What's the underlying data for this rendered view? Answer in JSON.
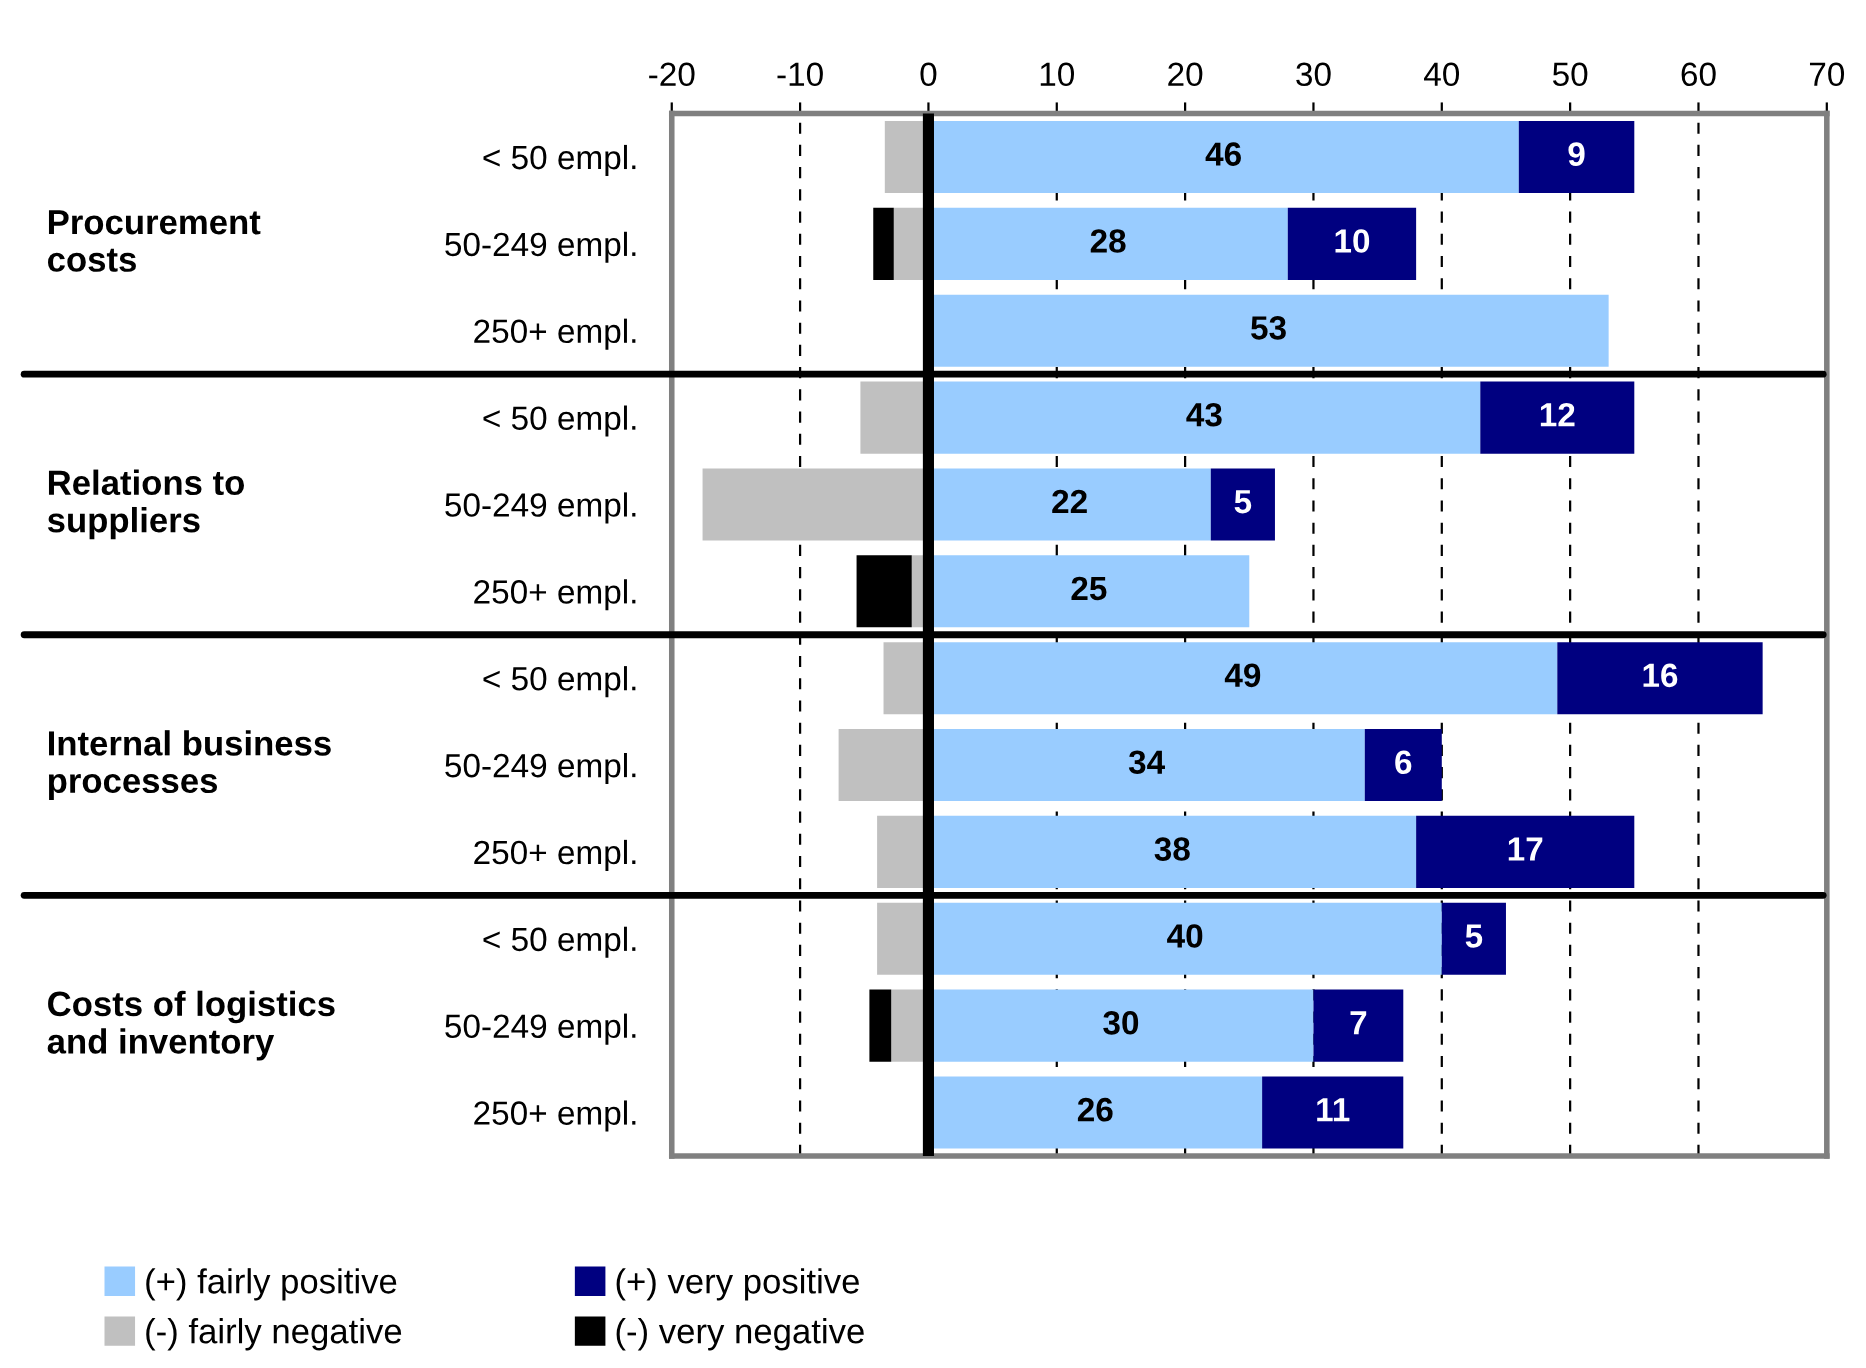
{
  "chart_data": {
    "type": "bar",
    "orientation": "horizontal",
    "stacked": true,
    "categories": [
      "< 50 empl.",
      "50-249 empl.",
      "250+ empl.",
      "< 50 empl.",
      "50-249 empl.",
      "250+ empl.",
      "< 50 empl.",
      "50-249 empl.",
      "250+ empl.",
      "< 50 empl.",
      "50-249 empl.",
      "250+ empl."
    ],
    "series": [
      {
        "name": "(+) fairly positive",
        "color": "#99ccff",
        "values": [
          46,
          28,
          53,
          43,
          22,
          25,
          49,
          34,
          38,
          40,
          30,
          26
        ],
        "value_labels": [
          "46",
          "28",
          "53",
          "43",
          "22",
          "25",
          "49",
          "34",
          "38",
          "40",
          "30",
          "26"
        ]
      },
      {
        "name": "(+) very positive",
        "color": "#000080",
        "values": [
          9,
          10,
          0,
          12,
          5,
          0,
          16,
          6,
          17,
          5,
          7,
          11
        ],
        "value_labels": [
          "9",
          "10",
          null,
          "12",
          "5",
          null,
          "16",
          "6",
          "17",
          "5",
          "7",
          "11"
        ]
      },
      {
        "name": "(-) fairly negative",
        "color": "#c0c0c0",
        "values": [
          -3.4,
          -2.7,
          0,
          -5.3,
          -17.6,
          -1.3,
          -3.5,
          -7.0,
          -4.0,
          -4.0,
          -2.9,
          0
        ]
      },
      {
        "name": "(-) very negative",
        "color": "#000000",
        "values": [
          0,
          -1.6,
          0,
          0,
          0,
          -4.3,
          0,
          0,
          0,
          0,
          -1.7,
          0
        ]
      }
    ],
    "annotations": [
      "Procurement costs",
      "Relations to suppliers",
      "Internal business processes",
      "Costs of logistics and inventory"
    ],
    "xlim": [
      -20,
      70
    ],
    "xticks": [
      -20,
      -10,
      0,
      10,
      20,
      30,
      40,
      50,
      60,
      70
    ],
    "ref_lines": [
      {
        "axis": "x",
        "value": 0,
        "color": "#000000"
      }
    ],
    "grid": "x",
    "legend": "bottom"
  }
}
